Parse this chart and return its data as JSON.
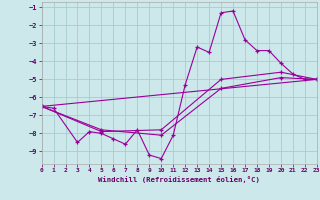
{
  "background_color": "#cce8eb",
  "grid_color": "#a8cccc",
  "line_color": "#990099",
  "xlabel": "Windchill (Refroidissement éolien,°C)",
  "xlabel_color": "#660066",
  "xlim": [
    0,
    23
  ],
  "ylim": [
    -9.7,
    -0.7
  ],
  "yticks": [
    -9,
    -8,
    -7,
    -6,
    -5,
    -4,
    -3,
    -2,
    -1
  ],
  "xticks": [
    0,
    1,
    2,
    3,
    4,
    5,
    6,
    7,
    8,
    9,
    10,
    11,
    12,
    13,
    14,
    15,
    16,
    17,
    18,
    19,
    20,
    21,
    22,
    23
  ],
  "line1_x": [
    0,
    1,
    3,
    4,
    5,
    6,
    7,
    8,
    9,
    10,
    11,
    12,
    13,
    14,
    15,
    16,
    17,
    18,
    19,
    20,
    21,
    22,
    23
  ],
  "line1_y": [
    -6.5,
    -6.6,
    -8.5,
    -7.9,
    -8.0,
    -8.3,
    -8.6,
    -7.8,
    -9.2,
    -9.4,
    -8.1,
    -5.3,
    -3.2,
    -3.5,
    -1.3,
    -1.2,
    -2.8,
    -3.4,
    -3.4,
    -4.1,
    -4.7,
    -5.0,
    -5.0
  ],
  "line2_x": [
    0,
    5,
    10,
    15,
    20,
    23
  ],
  "line2_y": [
    -6.5,
    -7.9,
    -7.8,
    -5.0,
    -4.6,
    -5.0
  ],
  "line3_x": [
    0,
    5,
    10,
    15,
    20,
    23
  ],
  "line3_y": [
    -6.5,
    -7.8,
    -8.1,
    -5.5,
    -4.9,
    -5.0
  ],
  "line4_x": [
    0,
    23
  ],
  "line4_y": [
    -6.5,
    -5.0
  ]
}
